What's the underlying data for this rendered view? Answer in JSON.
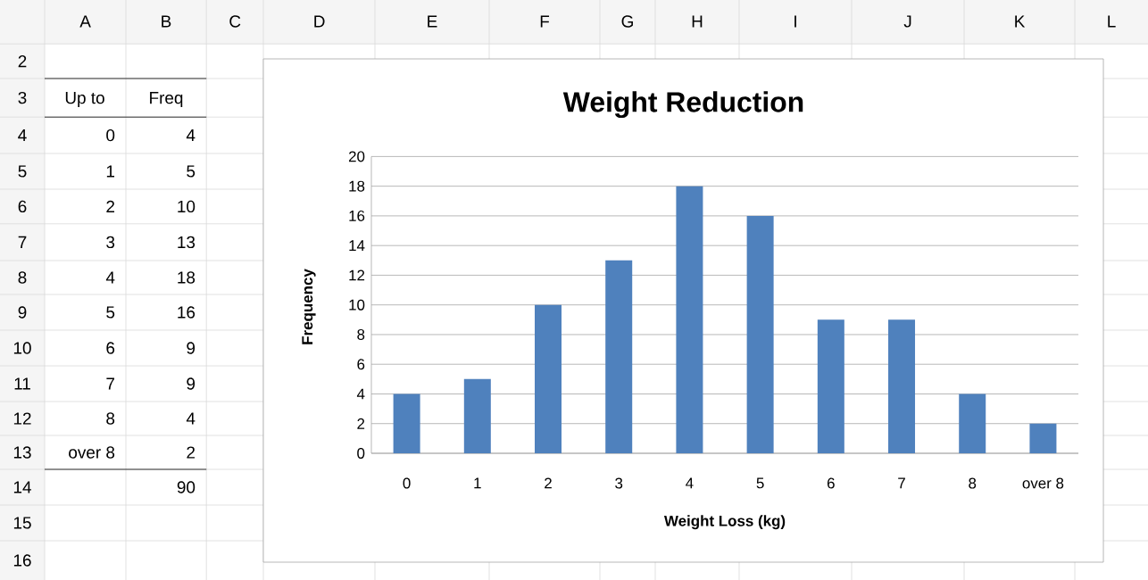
{
  "chart_data": {
    "type": "bar",
    "title": "Weight Reduction",
    "xlabel": "Weight Loss (kg)",
    "ylabel": "Frequency",
    "categories": [
      "0",
      "1",
      "2",
      "3",
      "4",
      "5",
      "6",
      "7",
      "8",
      "over 8"
    ],
    "values": [
      4,
      5,
      10,
      13,
      18,
      16,
      9,
      9,
      4,
      2
    ],
    "color": "#4f81bd",
    "ylim": [
      0,
      20
    ],
    "yticks": [
      0,
      2,
      4,
      6,
      8,
      10,
      12,
      14,
      16,
      18,
      20
    ],
    "grid": "y",
    "annotations": [
      "A",
      "B",
      "C",
      "D",
      "E",
      "F",
      "G",
      "H",
      "I",
      "J",
      "K",
      "L",
      "2",
      "3",
      "4",
      "5",
      "6",
      "7",
      "8",
      "9",
      "10",
      "11",
      "12",
      "13",
      "14",
      "15",
      "16",
      "Up to",
      "Freq",
      "90",
      "4",
      "5",
      "10",
      "13",
      "18",
      "16",
      "9",
      "9",
      "4",
      "2"
    ]
  }
}
